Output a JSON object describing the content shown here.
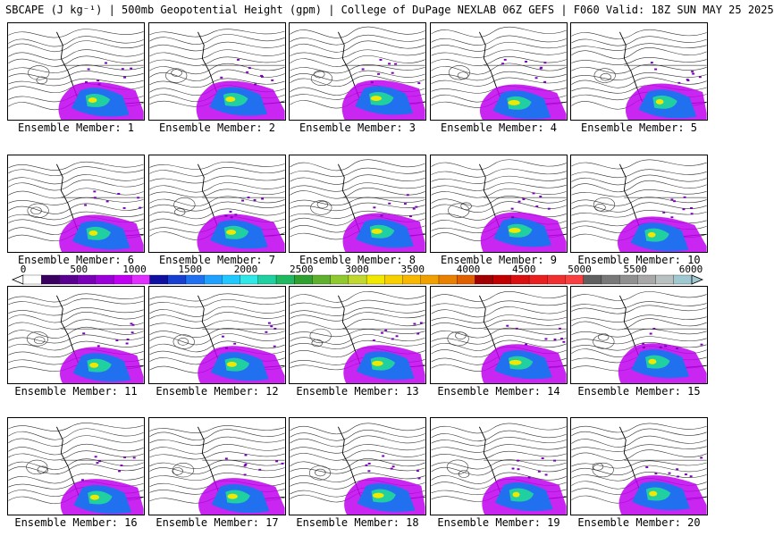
{
  "title": "SBCAPE (J kg⁻¹) | 500mb Geopotential Height (gpm) | College of DuPage NEXLAB 06Z GEFS | F060 Valid: 18Z SUN MAY 25 2025",
  "member_label_prefix": "Ensemble Member: ",
  "members": [
    1,
    2,
    3,
    4,
    5,
    6,
    7,
    8,
    9,
    10,
    11,
    12,
    13,
    14,
    15,
    16,
    17,
    18,
    19,
    20
  ],
  "colorbar": {
    "min": 0,
    "max": 6000,
    "tick_labels": [
      "0",
      "500",
      "1000",
      "1500",
      "2000",
      "2500",
      "3000",
      "3500",
      "4000",
      "4500",
      "5000",
      "5500",
      "6000"
    ],
    "colors": [
      "#ffffff",
      "#3a0060",
      "#5a0090",
      "#7a00b8",
      "#9a00d8",
      "#c000f0",
      "#e030ff",
      "#1010a0",
      "#1840d0",
      "#2070f0",
      "#20a0ff",
      "#20c8ff",
      "#30e8e8",
      "#20d0a0",
      "#20b860",
      "#30a030",
      "#60b030",
      "#90c830",
      "#c0d830",
      "#f0e800",
      "#f8d000",
      "#f8b800",
      "#f0a000",
      "#e88000",
      "#e06000",
      "#a00000",
      "#c00000",
      "#d81010",
      "#e82020",
      "#f03030",
      "#f84040",
      "#606060",
      "#787878",
      "#909090",
      "#a8a8a8",
      "#b8c0c0",
      "#a0c8d0"
    ]
  }
}
